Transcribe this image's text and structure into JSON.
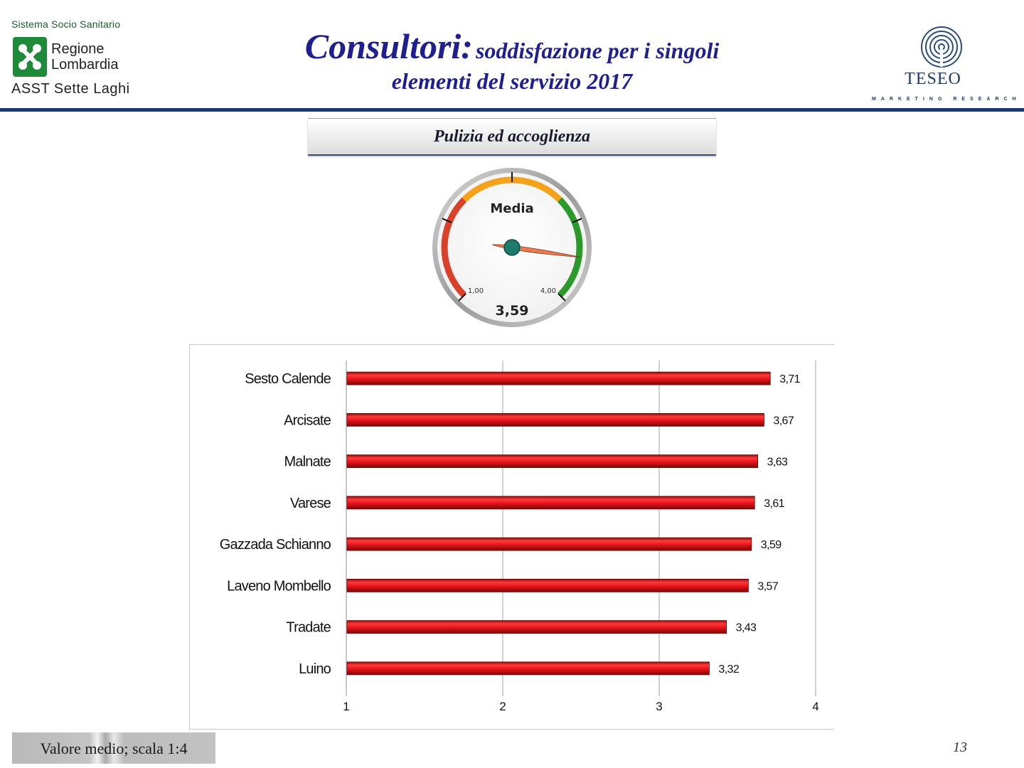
{
  "header": {
    "org_top": "Sistema Socio Sanitario",
    "org_region_1": "Regione",
    "org_region_2": "Lombardia",
    "org_asst": "ASST Sette Laghi",
    "title_main": "Consultori:",
    "title_sub": "soddisfazione per i singoli",
    "title_line2": "elementi del servizio 2017",
    "brand": "TESEO",
    "brand_tagline": "MARKETING RESEARCH"
  },
  "section_title": "Pulizia ed accoglienza",
  "gauge": {
    "label": "Media",
    "min_label": "1,00",
    "max_label": "4,00",
    "value": 3.59,
    "value_label": "3,59",
    "min": 1,
    "max": 4,
    "colors": {
      "low": "#d9412a",
      "mid": "#f5a21b",
      "high": "#2a9a2a",
      "needle": "#ee7a4f",
      "hub": "#1d7b6b"
    }
  },
  "chart_data": {
    "type": "bar",
    "orientation": "horizontal",
    "categories": [
      "Sesto Calende",
      "Arcisate",
      "Malnate",
      "Varese",
      "Gazzada Schianno",
      "Laveno Mombello",
      "Tradate",
      "Luino"
    ],
    "values": [
      3.71,
      3.67,
      3.63,
      3.61,
      3.59,
      3.57,
      3.43,
      3.32
    ],
    "value_labels": [
      "3,71",
      "3,67",
      "3,63",
      "3,61",
      "3,59",
      "3,57",
      "3,43",
      "3,32"
    ],
    "xlim": [
      1,
      4
    ],
    "xticks": [
      "1",
      "2",
      "3",
      "4"
    ],
    "grid": true,
    "bar_color": "#e8141c"
  },
  "footer": {
    "note": "Valore medio; scala 1:4",
    "page": "13"
  }
}
